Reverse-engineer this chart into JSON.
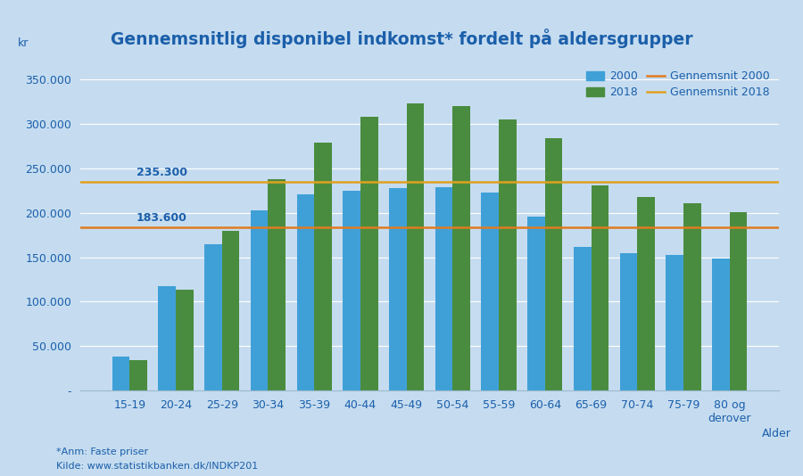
{
  "title": "Gennemsnitlig disponibel indkomst* fordelt på aldersgrupper",
  "categories": [
    "15-19",
    "20-24",
    "25-29",
    "30-34",
    "35-39",
    "40-44",
    "45-49",
    "50-54",
    "55-59",
    "60-64",
    "65-69",
    "70-74",
    "75-79",
    "80 og\nderover"
  ],
  "values_2000": [
    38000,
    117000,
    165000,
    203000,
    221000,
    225000,
    228000,
    229000,
    223000,
    196000,
    162000,
    155000,
    153000,
    149000
  ],
  "values_2018": [
    34000,
    113000,
    180000,
    238000,
    279000,
    308000,
    323000,
    320000,
    305000,
    284000,
    231000,
    218000,
    211000,
    201000
  ],
  "mean_2000": 183600,
  "mean_2018": 235300,
  "mean_2000_label": "183.600",
  "mean_2018_label": "235.300",
  "color_2000": "#3FA0D8",
  "color_2018": "#4A8C3F",
  "color_mean_2000": "#E07B20",
  "color_mean_2018": "#E0A020",
  "background_color": "#C5DCF0",
  "title_color": "#1B5FAA",
  "tick_color": "#1B5FAA",
  "ylabel": "kr",
  "xlabel": "Alder",
  "legend_2000": "2000",
  "legend_2018": "2018",
  "legend_mean_2000": "Gennemsnit 2000",
  "legend_mean_2018": "Gennemsnit 2018",
  "ylim": [
    0,
    370000
  ],
  "yticks": [
    0,
    50000,
    100000,
    150000,
    200000,
    250000,
    300000,
    350000
  ],
  "ytick_labels": [
    "-",
    "50.000",
    "100.000",
    "150.000",
    "200.000",
    "250.000",
    "300.000",
    "350.000"
  ],
  "note_line1": "*Anm: Faste priser",
  "note_line2": "Kilde: www.statistikbanken.dk/INDKP201"
}
